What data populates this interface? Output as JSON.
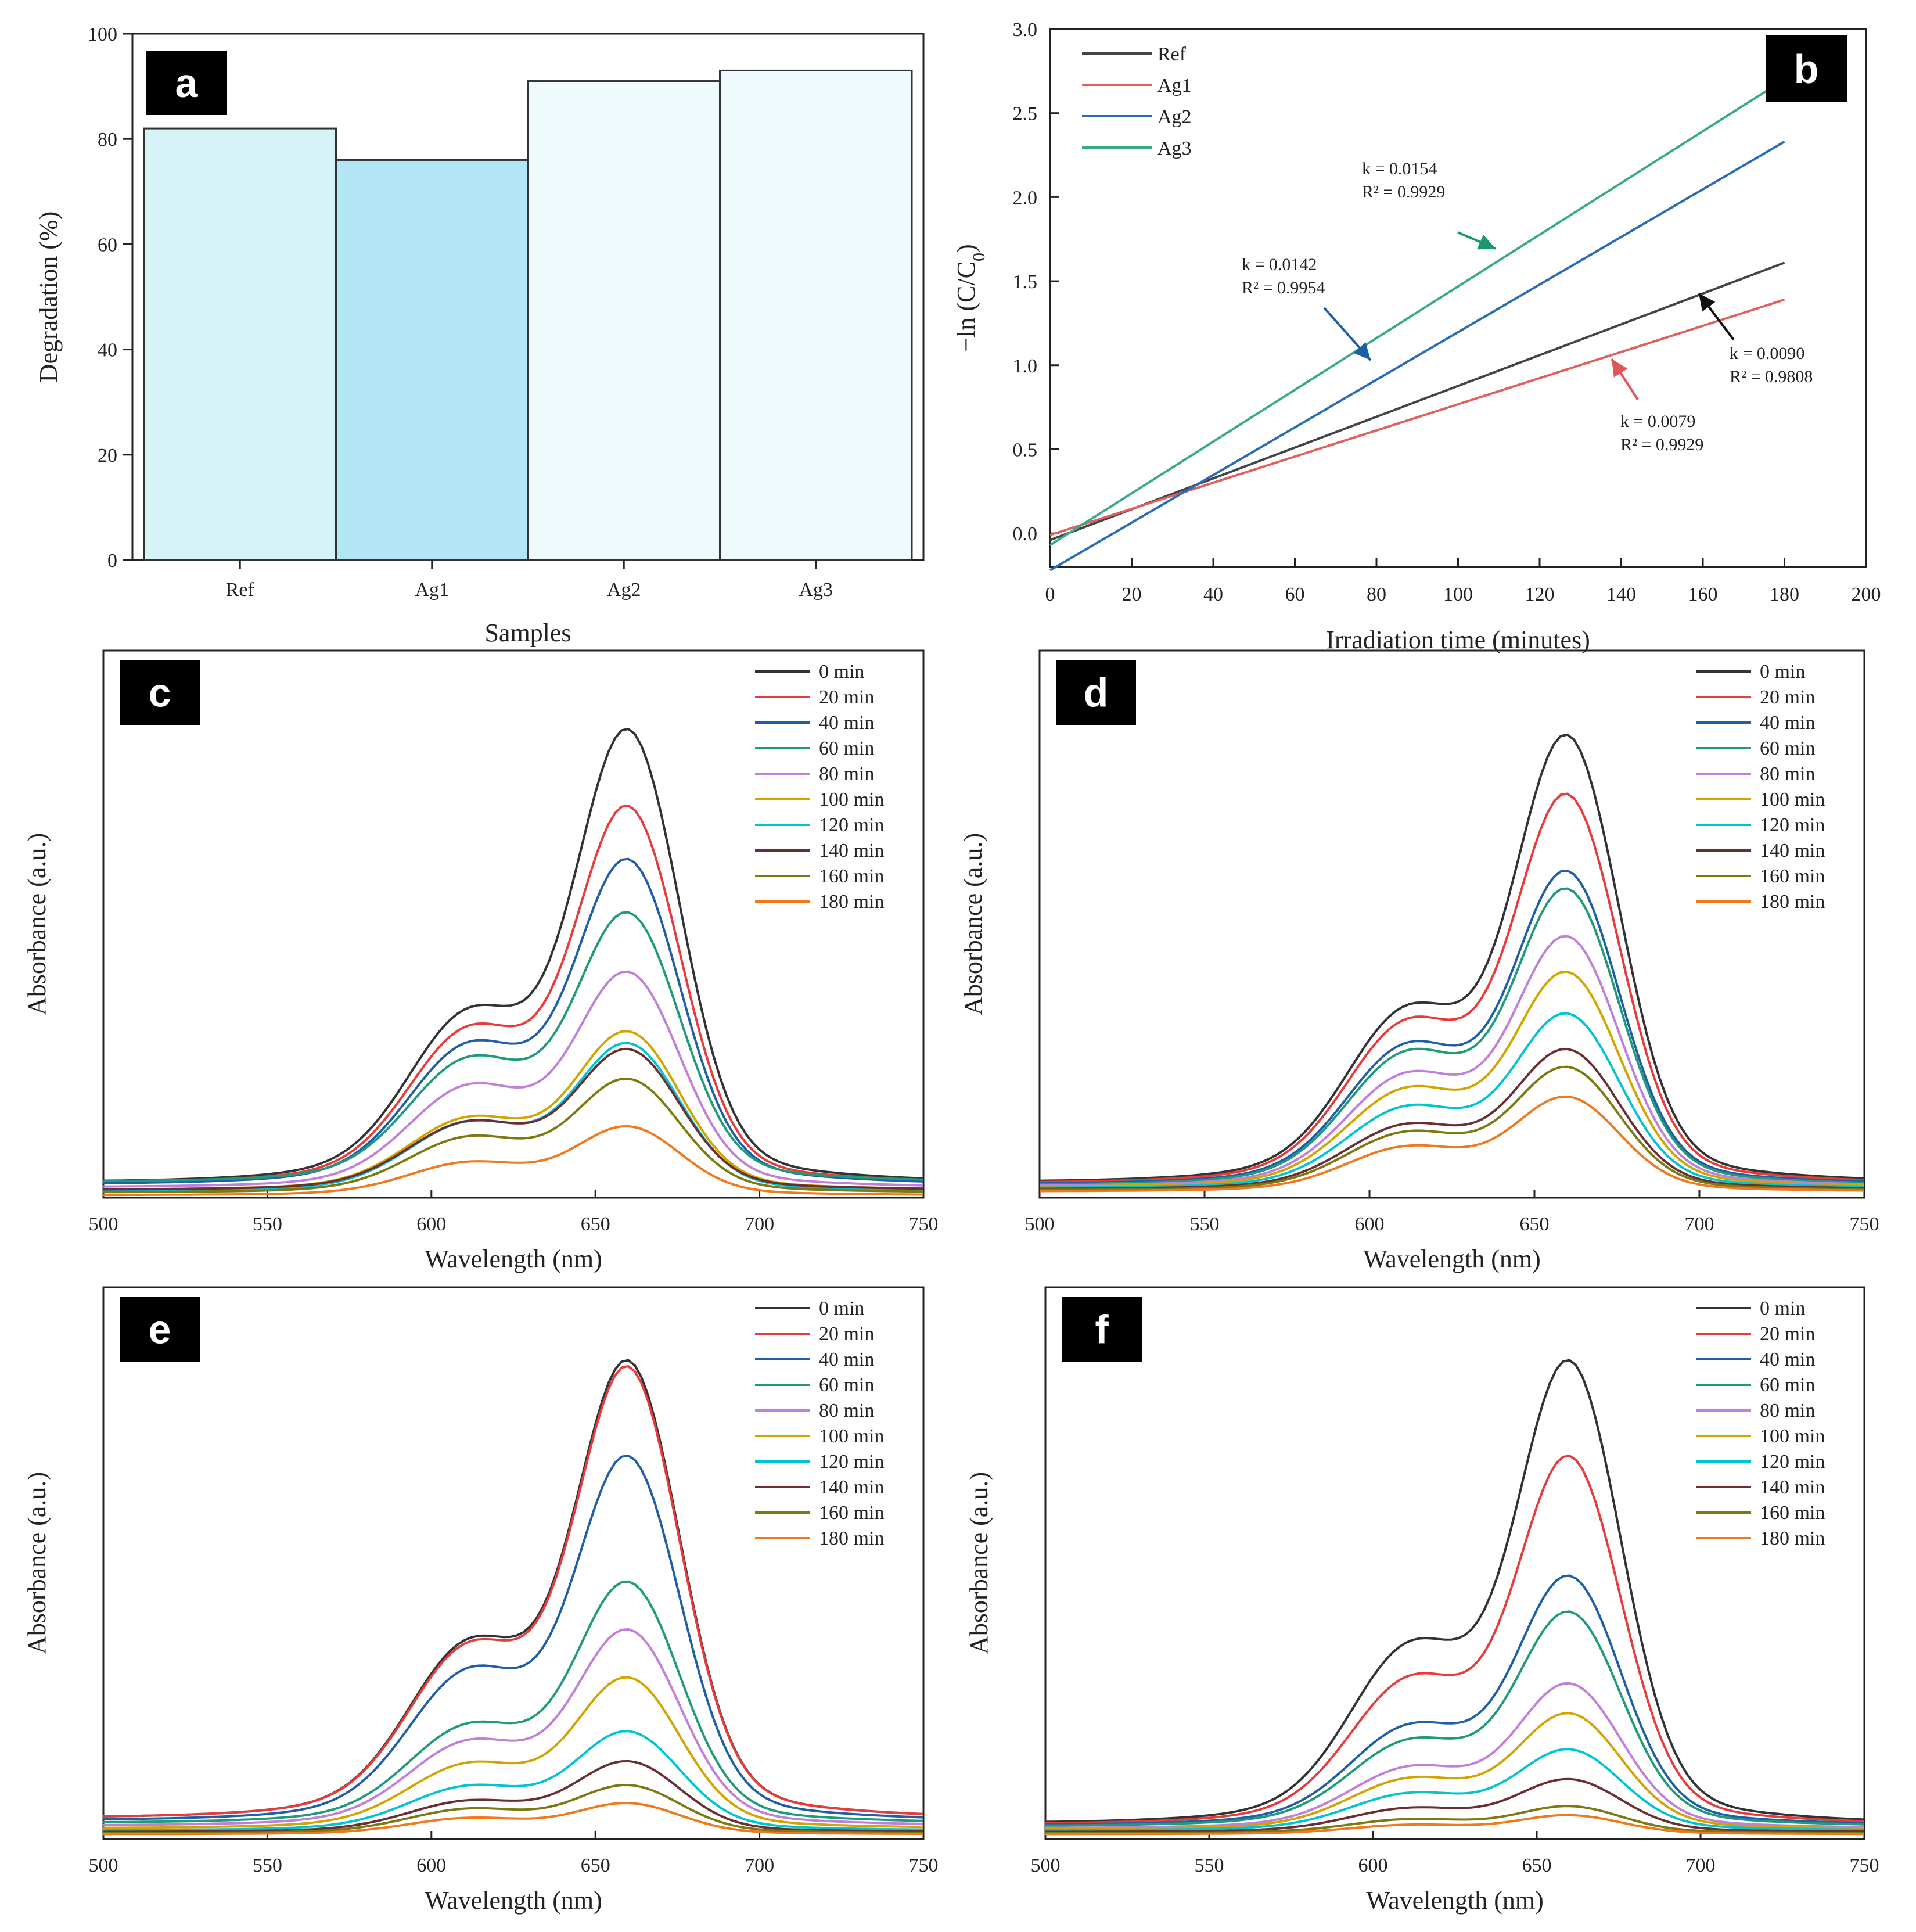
{
  "chart_data": [
    {
      "id": "a",
      "type": "bar",
      "panel_label": "a",
      "categories": [
        "Ref",
        "Ag1",
        "Ag2",
        "Ag3"
      ],
      "values": [
        82,
        76,
        91,
        93
      ],
      "bar_colors": [
        "#d6f3f8",
        "#b3e6f4",
        "#eefafc",
        "#eefafc"
      ],
      "xlabel": "Samples",
      "ylabel": "Degradation (%)",
      "ylim": [
        0,
        100
      ],
      "yticks": [
        0,
        20,
        40,
        60,
        80,
        100
      ],
      "ytick_labels": [
        "0",
        "20",
        "40",
        "60",
        "80",
        "100"
      ]
    },
    {
      "id": "b",
      "type": "line",
      "panel_label": "b",
      "xlabel": "Irradiation time (minutes)",
      "ylabel": "−ln (C/C",
      "ylabel_sub": "0",
      "ylabel_close": ")",
      "xlim": [
        0,
        200
      ],
      "ylim": [
        -0.2,
        3.0
      ],
      "xticks": [
        0,
        20,
        40,
        60,
        80,
        100,
        120,
        140,
        160,
        180,
        200
      ],
      "xtick_labels": [
        "0",
        "20",
        "40",
        "60",
        "80",
        "100",
        "120",
        "140",
        "160",
        "180",
        "200"
      ],
      "yticks": [
        0.0,
        0.5,
        1.0,
        1.5,
        2.0,
        2.5,
        3.0
      ],
      "ytick_labels": [
        "0.0",
        "0.5",
        "1.0",
        "1.5",
        "2.0",
        "2.5",
        "3.0"
      ],
      "legend_position": "top-left",
      "series": [
        {
          "name": "Ref",
          "color": "#444444",
          "x": [
            0,
            180
          ],
          "y": [
            -0.04,
            1.61
          ]
        },
        {
          "name": "Ag1",
          "color": "#e06060",
          "x": [
            0,
            180
          ],
          "y": [
            -0.01,
            1.39
          ]
        },
        {
          "name": "Ag2",
          "color": "#2a6db5",
          "x": [
            0,
            180
          ],
          "y": [
            -0.22,
            2.33
          ]
        },
        {
          "name": "Ag3",
          "color": "#3aaa8a",
          "x": [
            0,
            180
          ],
          "y": [
            -0.07,
            2.7
          ]
        }
      ],
      "annotations": [
        {
          "k": "k = 0.0154",
          "r2": "R² = 0.9929",
          "color": "#1a9a6a"
        },
        {
          "k": "k = 0.0142",
          "r2": "R² = 0.9954",
          "color": "#1a5fa8"
        },
        {
          "k": "k = 0.0090",
          "r2": "R² = 0.9808",
          "color": "#111111"
        },
        {
          "k": "k = 0.0079",
          "r2": "R² = 0.9929",
          "color": "#e05555"
        }
      ]
    },
    {
      "id": "c",
      "type": "line",
      "panel_label": "c",
      "xlabel": "Wavelength (nm)",
      "ylabel": "Absorbance (a.u.)",
      "xlim": [
        500,
        750
      ],
      "ylim": [
        0,
        1.0
      ],
      "xticks": [
        500,
        550,
        600,
        650,
        700,
        750
      ],
      "xtick_labels": [
        "500",
        "550",
        "600",
        "650",
        "700",
        "750"
      ],
      "legend_position": "top-right",
      "series": [
        {
          "name": "0 min",
          "peak": 0.79,
          "shoulder": 0.5,
          "base": 0.03
        },
        {
          "name": "20 min",
          "peak": 0.66,
          "shoulder": 0.46,
          "base": 0.028
        },
        {
          "name": "40 min",
          "peak": 0.57,
          "shoulder": 0.42,
          "base": 0.026
        },
        {
          "name": "60 min",
          "peak": 0.48,
          "shoulder": 0.38,
          "base": 0.03
        },
        {
          "name": "80 min",
          "peak": 0.38,
          "shoulder": 0.31,
          "base": 0.02
        },
        {
          "name": "100 min",
          "peak": 0.28,
          "shoulder": 0.22,
          "base": 0.015
        },
        {
          "name": "120 min",
          "peak": 0.26,
          "shoulder": 0.21,
          "base": 0.012
        },
        {
          "name": "140 min",
          "peak": 0.25,
          "shoulder": 0.21,
          "base": 0.015
        },
        {
          "name": "160 min",
          "peak": 0.2,
          "shoulder": 0.17,
          "base": 0.01
        },
        {
          "name": "180 min",
          "peak": 0.12,
          "shoulder": 0.1,
          "base": 0.005
        }
      ]
    },
    {
      "id": "d",
      "type": "line",
      "panel_label": "d",
      "xlabel": "Wavelength (nm)",
      "ylabel": "Absorbance (a.u.)",
      "xlim": [
        500,
        750
      ],
      "ylim": [
        0,
        1.0
      ],
      "xticks": [
        500,
        550,
        600,
        650,
        700,
        750
      ],
      "xtick_labels": [
        "500",
        "550",
        "600",
        "650",
        "700",
        "750"
      ],
      "legend_position": "top-right",
      "series": [
        {
          "name": "0 min",
          "peak": 0.78,
          "shoulder": 0.51,
          "base": 0.03
        },
        {
          "name": "20 min",
          "peak": 0.68,
          "shoulder": 0.48,
          "base": 0.028
        },
        {
          "name": "40 min",
          "peak": 0.55,
          "shoulder": 0.42,
          "base": 0.026
        },
        {
          "name": "60 min",
          "peak": 0.52,
          "shoulder": 0.4,
          "base": 0.024
        },
        {
          "name": "80 min",
          "peak": 0.44,
          "shoulder": 0.34,
          "base": 0.022
        },
        {
          "name": "100 min",
          "peak": 0.38,
          "shoulder": 0.3,
          "base": 0.02
        },
        {
          "name": "120 min",
          "peak": 0.31,
          "shoulder": 0.25,
          "base": 0.018
        },
        {
          "name": "140 min",
          "peak": 0.25,
          "shoulder": 0.2,
          "base": 0.016
        },
        {
          "name": "160 min",
          "peak": 0.22,
          "shoulder": 0.18,
          "base": 0.014
        },
        {
          "name": "180 min",
          "peak": 0.17,
          "shoulder": 0.14,
          "base": 0.012
        }
      ]
    },
    {
      "id": "e",
      "type": "line",
      "panel_label": "e",
      "xlabel": "Wavelength (nm)",
      "ylabel": "Absorbance (a.u.)",
      "xlim": [
        500,
        750
      ],
      "ylim": [
        0,
        1.0
      ],
      "xticks": [
        500,
        550,
        600,
        650,
        700,
        750
      ],
      "xtick_labels": [
        "500",
        "550",
        "600",
        "650",
        "700",
        "750"
      ],
      "legend_position": "top-right",
      "series": [
        {
          "name": "0 min",
          "peak": 0.8,
          "shoulder": 0.52,
          "base": 0.04
        },
        {
          "name": "20 min",
          "peak": 0.79,
          "shoulder": 0.51,
          "base": 0.04
        },
        {
          "name": "40 min",
          "peak": 0.64,
          "shoulder": 0.45,
          "base": 0.035
        },
        {
          "name": "60 min",
          "peak": 0.43,
          "shoulder": 0.3,
          "base": 0.03
        },
        {
          "name": "80 min",
          "peak": 0.35,
          "shoulder": 0.26,
          "base": 0.025
        },
        {
          "name": "100 min",
          "peak": 0.27,
          "shoulder": 0.2,
          "base": 0.02
        },
        {
          "name": "120 min",
          "peak": 0.18,
          "shoulder": 0.14,
          "base": 0.016
        },
        {
          "name": "140 min",
          "peak": 0.13,
          "shoulder": 0.1,
          "base": 0.013
        },
        {
          "name": "160 min",
          "peak": 0.09,
          "shoulder": 0.08,
          "base": 0.011
        },
        {
          "name": "180 min",
          "peak": 0.06,
          "shoulder": 0.055,
          "base": 0.009
        }
      ]
    },
    {
      "id": "f",
      "type": "line",
      "panel_label": "f",
      "xlabel": "Wavelength (nm)",
      "ylabel": "Absorbance (a.u.)",
      "xlim": [
        500,
        750
      ],
      "ylim": [
        0,
        1.0
      ],
      "xticks": [
        500,
        550,
        600,
        650,
        700,
        750
      ],
      "xtick_labels": [
        "500",
        "550",
        "600",
        "650",
        "700",
        "750"
      ],
      "legend_position": "top-right",
      "series": [
        {
          "name": "0 min",
          "peak": 0.8,
          "shoulder": 0.52,
          "base": 0.03
        },
        {
          "name": "20 min",
          "peak": 0.64,
          "shoulder": 0.43,
          "base": 0.028
        },
        {
          "name": "40 min",
          "peak": 0.44,
          "shoulder": 0.3,
          "base": 0.026
        },
        {
          "name": "60 min",
          "peak": 0.38,
          "shoulder": 0.26,
          "base": 0.024
        },
        {
          "name": "80 min",
          "peak": 0.26,
          "shoulder": 0.19,
          "base": 0.02
        },
        {
          "name": "100 min",
          "peak": 0.21,
          "shoulder": 0.16,
          "base": 0.018
        },
        {
          "name": "120 min",
          "peak": 0.15,
          "shoulder": 0.12,
          "base": 0.016
        },
        {
          "name": "140 min",
          "peak": 0.1,
          "shoulder": 0.08,
          "base": 0.013
        },
        {
          "name": "160 min",
          "peak": 0.055,
          "shoulder": 0.05,
          "base": 0.011
        },
        {
          "name": "180 min",
          "peak": 0.04,
          "shoulder": 0.035,
          "base": 0.009
        }
      ]
    }
  ],
  "time_colors": [
    "#333333",
    "#e83b3b",
    "#1f5fa8",
    "#1f9a7a",
    "#c07fd8",
    "#d1a400",
    "#00c4d4",
    "#6b2f33",
    "#7a7a10",
    "#ef7a1e"
  ]
}
